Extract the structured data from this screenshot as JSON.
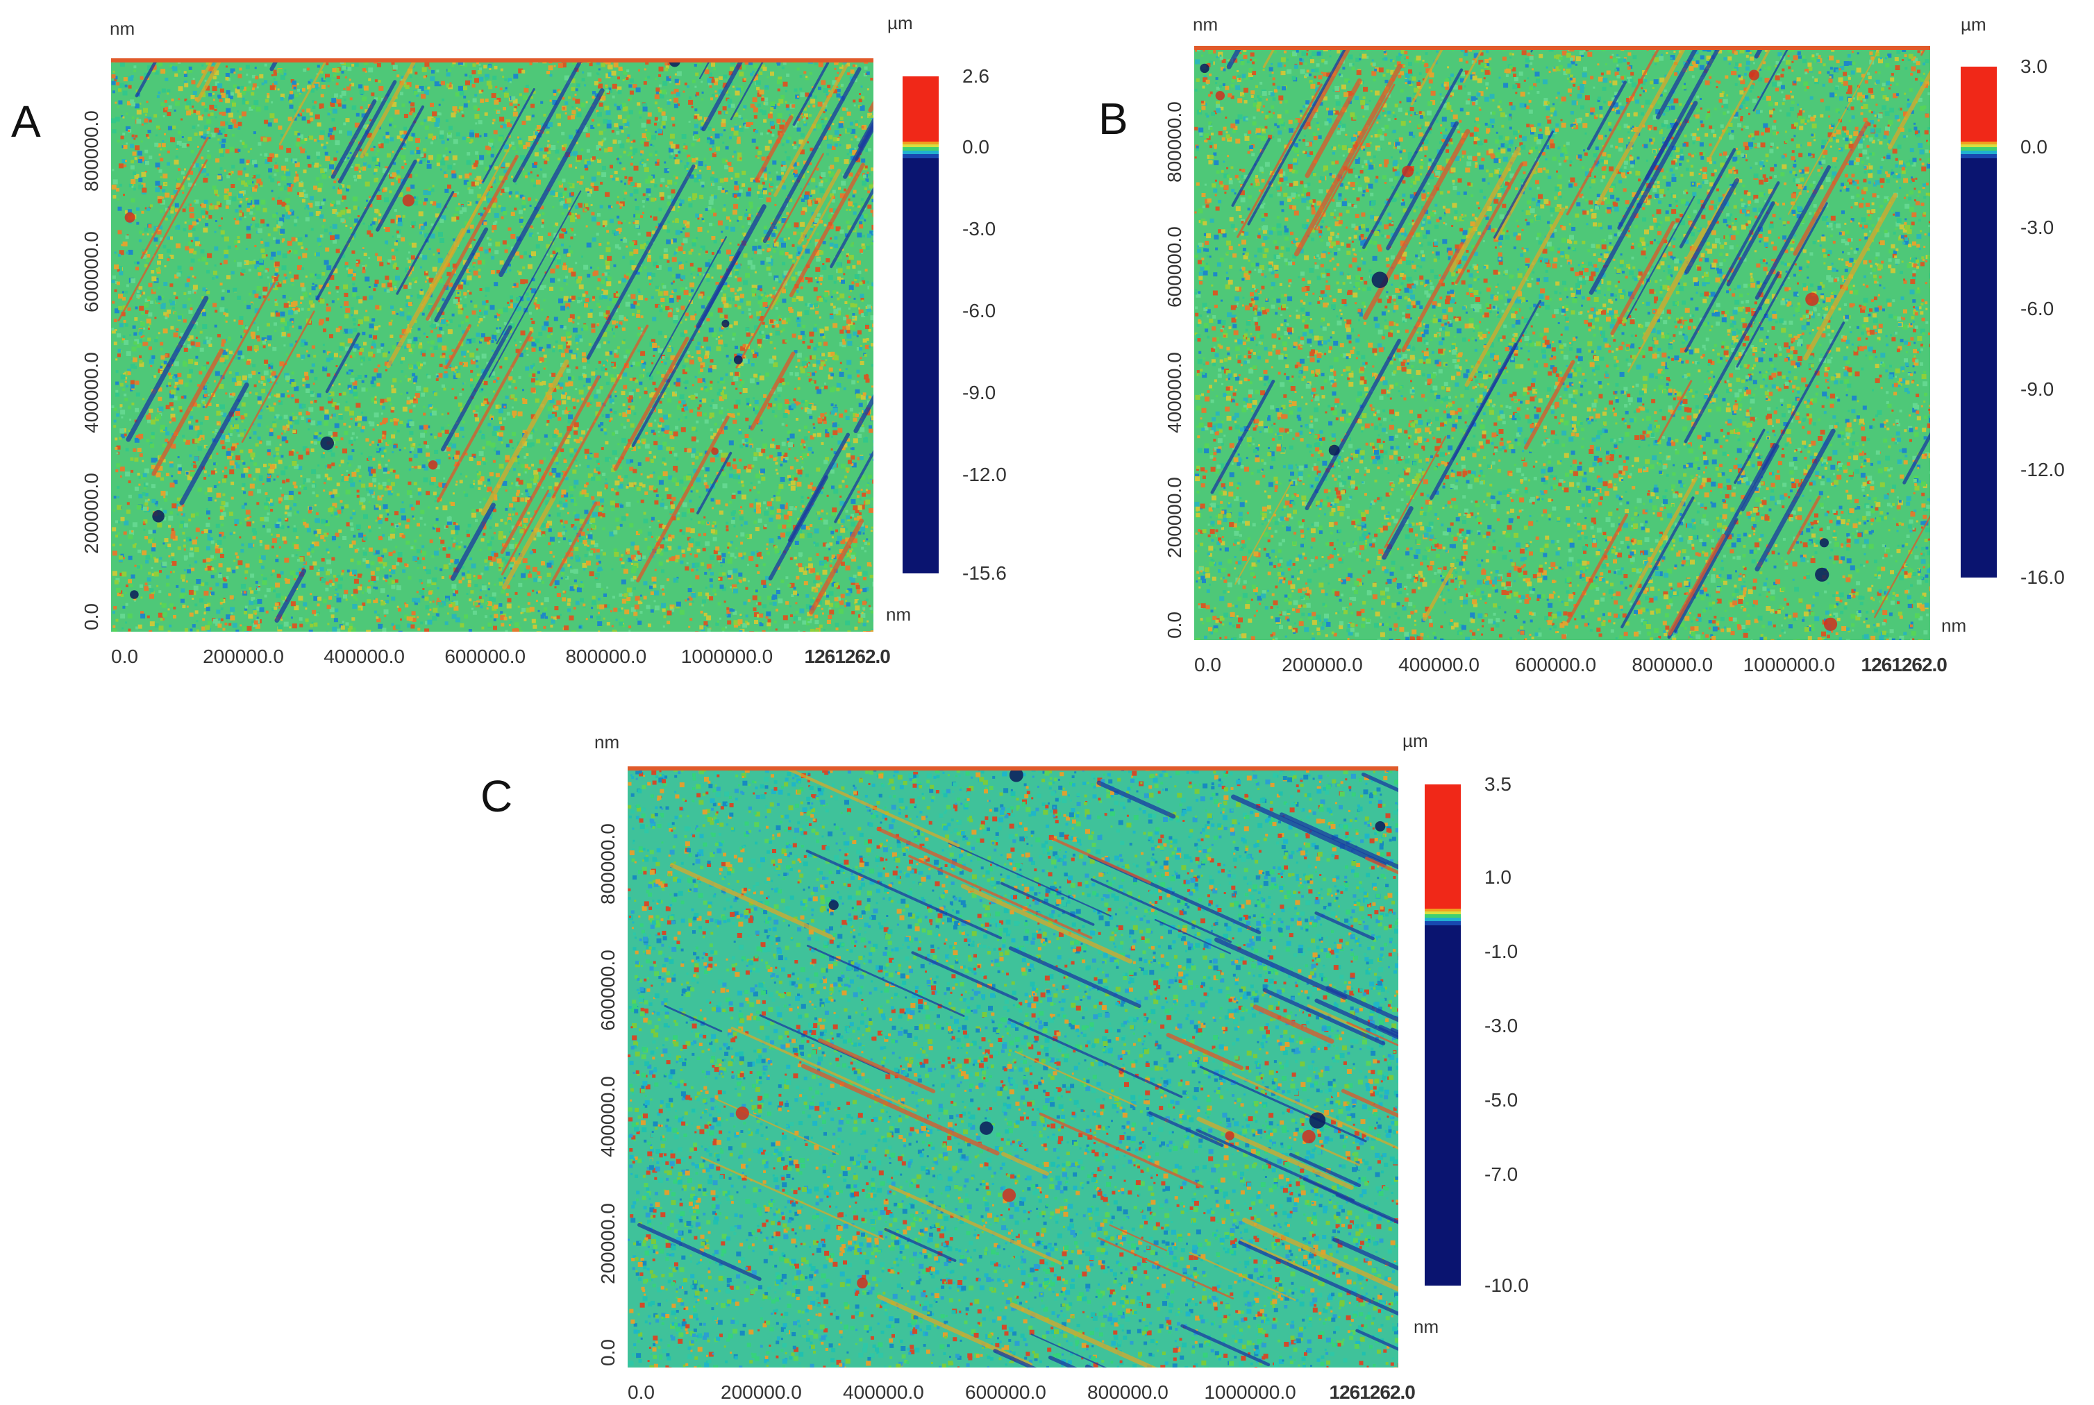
{
  "chart_data": [
    {
      "type": "heatmap",
      "panel_label": "A",
      "title": "",
      "x_unit": "nm",
      "y_unit": "nm",
      "z_unit": "µm",
      "x_ticks": [
        "0.0",
        "200000.0",
        "400000.0",
        "600000.0",
        "800000.0",
        "1000000.0",
        "1261262.0"
      ],
      "y_ticks": [
        "0.0",
        "200000.0",
        "400000.0",
        "600000.0",
        "800000.0"
      ],
      "xlim": [
        0,
        1261262
      ],
      "ylim": [
        0,
        950000
      ],
      "colorbar_ticks": [
        "2.6",
        "0.0",
        "-3.0",
        "-6.0",
        "-9.0",
        "-12.0",
        "-15.6"
      ],
      "colorbar_range": [
        -15.6,
        2.6
      ],
      "texture": "diagonal-rising",
      "dominant": "green"
    },
    {
      "type": "heatmap",
      "panel_label": "B",
      "title": "",
      "x_unit": "nm",
      "y_unit": "nm",
      "z_unit": "µm",
      "x_ticks": [
        "0.0",
        "200000.0",
        "400000.0",
        "600000.0",
        "800000.0",
        "1000000.0",
        "1261262.0"
      ],
      "y_ticks": [
        "0.0",
        "200000.0",
        "400000.0",
        "600000.0",
        "800000.0"
      ],
      "xlim": [
        0,
        1261262
      ],
      "ylim": [
        0,
        950000
      ],
      "colorbar_ticks": [
        "3.0",
        "0.0",
        "-3.0",
        "-6.0",
        "-9.0",
        "-12.0",
        "-16.0"
      ],
      "colorbar_range": [
        -16.0,
        3.0
      ],
      "texture": "diagonal-rising",
      "dominant": "green"
    },
    {
      "type": "heatmap",
      "panel_label": "C",
      "title": "",
      "x_unit": "nm",
      "y_unit": "nm",
      "z_unit": "µm",
      "x_ticks": [
        "0.0",
        "200000.0",
        "400000.0",
        "600000.0",
        "800000.0",
        "1000000.0",
        "1261262.0"
      ],
      "y_ticks": [
        "0.0",
        "200000.0",
        "400000.0",
        "600000.0",
        "800000.0"
      ],
      "xlim": [
        0,
        1261262
      ],
      "ylim": [
        0,
        950000
      ],
      "colorbar_ticks": [
        "3.5",
        "1.0",
        "-1.0",
        "-3.0",
        "-5.0",
        "-7.0",
        "-10.0"
      ],
      "colorbar_range": [
        -10.0,
        3.5
      ],
      "texture": "diagonal-falling",
      "dominant": "teal"
    }
  ]
}
